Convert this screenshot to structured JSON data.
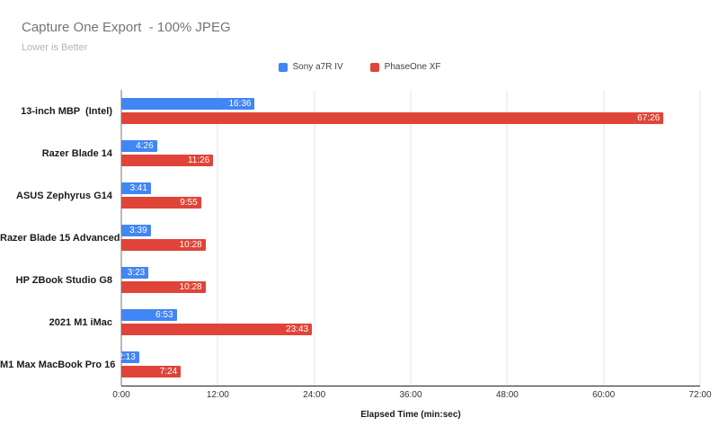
{
  "title": "Capture One Export  - 100% JPEG",
  "subtitle": "Lower is Better",
  "colors": {
    "series_blue": "#4285F4",
    "series_red": "#E04438",
    "gridline": "#e6e6e6",
    "baseline": "#757575",
    "axis_line": "#212121",
    "title_text": "#757575",
    "subtitle_text": "#b3b3b3"
  },
  "chart_data": {
    "type": "bar",
    "orientation": "horizontal",
    "title": "Capture One Export  - 100% JPEG",
    "subtitle": "Lower is Better",
    "xlabel": "Elapsed Time (min:sec)",
    "ylabel": "",
    "grid": true,
    "legend_position": "top-center",
    "categories": [
      "13-inch MBP  (Intel)",
      "Razer Blade 14",
      "ASUS Zephyrus G14",
      "Razer Blade 15 Advanced",
      "HP ZBook Studio G8",
      "2021 M1 iMac",
      "M1 Max MacBook Pro 16"
    ],
    "series": [
      {
        "name": "Sony a7R IV",
        "color": "#4285F4",
        "labels": [
          "16:36",
          "4:26",
          "3:41",
          "3:39",
          "3:23",
          "6:53",
          "2:13"
        ],
        "values_sec": [
          996,
          266,
          221,
          219,
          203,
          413,
          133
        ]
      },
      {
        "name": "PhaseOne XF",
        "color": "#E04438",
        "labels": [
          "67:26",
          "11:26",
          "9:55",
          "10:28",
          "10:28",
          "23:43",
          "7:24"
        ],
        "values_sec": [
          4046,
          686,
          595,
          628,
          628,
          1423,
          444
        ]
      }
    ],
    "x_ticks": [
      "0:00",
      "12:00",
      "24:00",
      "36:00",
      "48:00",
      "60:00",
      "72:00"
    ],
    "xlim_seconds": [
      0,
      4320
    ]
  }
}
